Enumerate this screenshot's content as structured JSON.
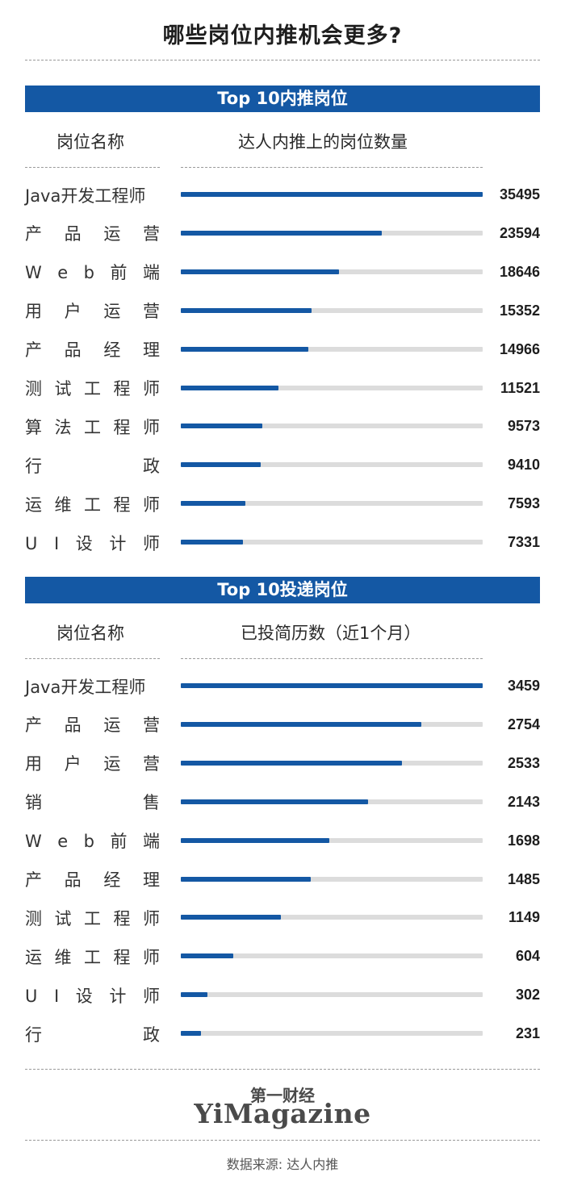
{
  "title": "哪些岗位内推机会更多?",
  "chart_data": [
    {
      "type": "bar",
      "title": "Top 10内推岗位",
      "xlabel": "达人内推上的岗位数量",
      "category_header": "岗位名称",
      "categories": [
        "Java开发工程师",
        "产品运营",
        "Web前端",
        "用户运营",
        "产品经理",
        "测试工程师",
        "算法工程师",
        "行政",
        "运维工程师",
        "UI设计师"
      ],
      "values": [
        35495,
        23594,
        18646,
        15352,
        14966,
        11521,
        9573,
        9410,
        7593,
        7331
      ],
      "xlim": [
        0,
        35495
      ]
    },
    {
      "type": "bar",
      "title": "Top 10投递岗位",
      "xlabel": "已投简历数（近1个月）",
      "category_header": "岗位名称",
      "categories": [
        "Java开发工程师",
        "产品运营",
        "用户运营",
        "销售",
        "Web前端",
        "产品经理",
        "测试工程师",
        "运维工程师",
        "UI设计师",
        "行政"
      ],
      "values": [
        3459,
        2754,
        2533,
        2143,
        1698,
        1485,
        1149,
        604,
        302,
        231
      ],
      "xlim": [
        0,
        3459
      ]
    }
  ],
  "logo_cn": "第一财经",
  "logo_en": "YiMagazine",
  "source": "数据来源: 达人内推",
  "colors": {
    "accent": "#1458a4",
    "track": "#dcdcdc"
  }
}
